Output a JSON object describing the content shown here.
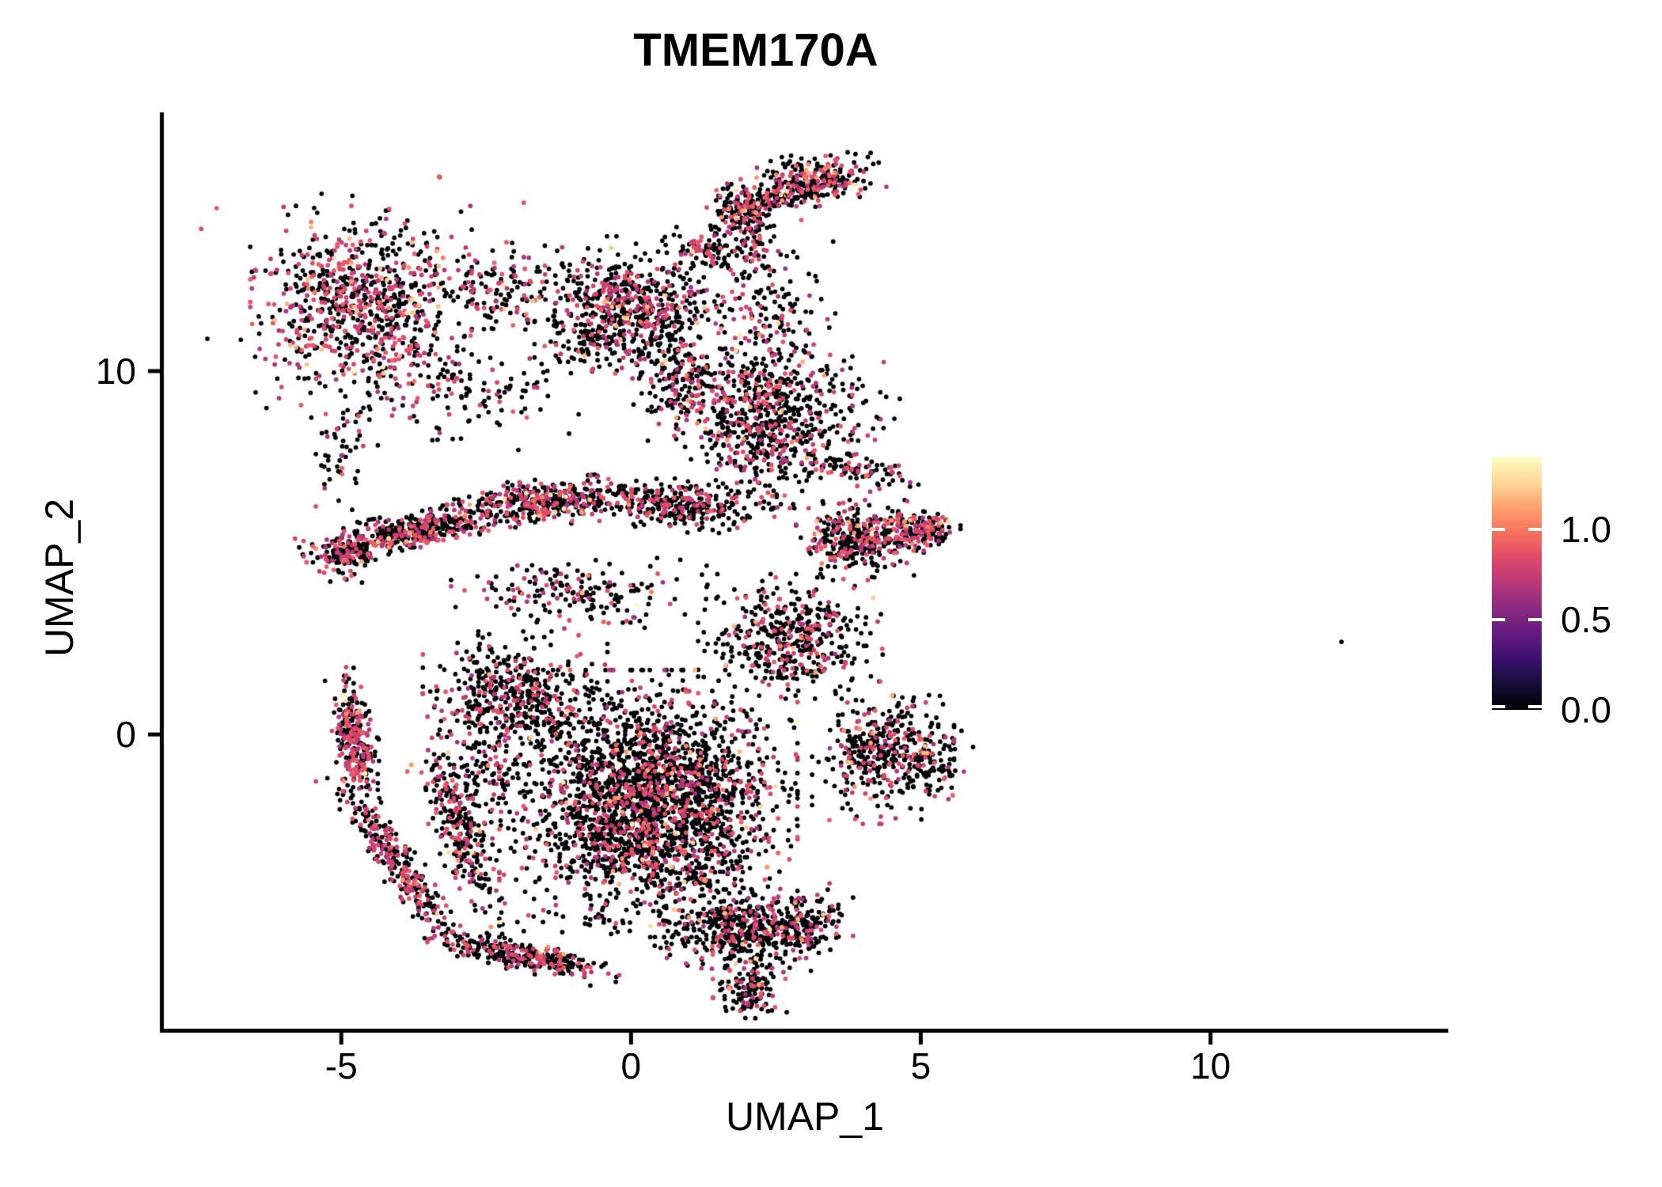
{
  "chart": {
    "title": "TMEM170A",
    "x_axis": {
      "label": "UMAP_1",
      "range": [
        -8.09,
        14.09
      ],
      "ticks": [
        {
          "value": -5,
          "label": "-5"
        },
        {
          "value": 0,
          "label": "0"
        },
        {
          "value": 5,
          "label": "5"
        },
        {
          "value": 10,
          "label": "10"
        }
      ]
    },
    "y_axis": {
      "label": "UMAP_2",
      "range": [
        -8.12,
        17.12
      ],
      "ticks": [
        {
          "value": 0,
          "label": "0"
        },
        {
          "value": 10,
          "label": "10"
        }
      ]
    },
    "colorbar": {
      "domain": [
        0,
        1.4
      ],
      "ticks": [
        {
          "value": 1.0,
          "label": "1.0"
        },
        {
          "value": 0.5,
          "label": "0.5"
        },
        {
          "value": 0.0,
          "label": "0.0"
        }
      ]
    }
  },
  "chart_data": {
    "type": "scatter",
    "title": "TMEM170A",
    "xlabel": "UMAP_1",
    "ylabel": "UMAP_2",
    "x_range": [
      -8.09,
      14.09
    ],
    "y_range": [
      -8.12,
      17.12
    ],
    "x_ticks": [
      -5,
      0,
      5,
      10
    ],
    "y_ticks": [
      0,
      10
    ],
    "grid": false,
    "legend_position": "right-colorbar",
    "point_radius_px": 2.9,
    "seed": 1337,
    "approx_total_points": 11390,
    "zero_expression_color": "#000004",
    "colormap": {
      "name": "magma",
      "domain": [
        0,
        1.4
      ],
      "stops": [
        [
          0.0,
          "#000004"
        ],
        [
          0.1,
          "#140e36"
        ],
        [
          0.2,
          "#3b0f70"
        ],
        [
          0.3,
          "#641a80"
        ],
        [
          0.4,
          "#8c2981"
        ],
        [
          0.5,
          "#b73779"
        ],
        [
          0.6,
          "#de4968"
        ],
        [
          0.7,
          "#f7705c"
        ],
        [
          0.8,
          "#fe9f6d"
        ],
        [
          0.9,
          "#fed799"
        ],
        [
          1.0,
          "#fcfdbf"
        ]
      ]
    },
    "clusters": [
      {
        "name": "topleft-blob",
        "cx": -4.66,
        "cy": 11.9,
        "sx": 0.78,
        "sy": 1.08,
        "rot": 0,
        "n": 680,
        "colored": 0.45,
        "orange": 0.1
      },
      {
        "name": "topleft-halo",
        "cx": -4.6,
        "cy": 11.8,
        "sx": 1.15,
        "sy": 1.45,
        "rot": 0,
        "n": 150,
        "colored": 0.3,
        "orange": 0.05
      },
      {
        "name": "bridge",
        "cx": -2.1,
        "cy": 12.3,
        "sx": 0.55,
        "sy": 0.5,
        "rot": -8,
        "n": 150,
        "colored": 0.3,
        "orange": 0.05
      },
      {
        "name": "midtop-cluster",
        "cx": 0.0,
        "cy": 11.8,
        "sx": 0.68,
        "sy": 0.78,
        "rot": 0,
        "n": 520,
        "colored": 0.33,
        "orange": 0.06
      },
      {
        "name": "midtop-lower",
        "cx": -0.55,
        "cy": 10.9,
        "sx": 0.5,
        "sy": 0.45,
        "rot": 0,
        "n": 120,
        "colored": 0.3,
        "orange": 0.05
      },
      {
        "name": "midtop-e-connector",
        "cx": 0.9,
        "cy": 9.8,
        "sx": 0.35,
        "sy": 0.7,
        "rot": 0,
        "n": 190,
        "colored": 0.3,
        "orange": 0.05
      },
      {
        "name": "arm-blob",
        "cx": 3.25,
        "cy": 15.3,
        "sx": 0.45,
        "sy": 0.3,
        "rot": 15,
        "n": 210,
        "colored": 0.42,
        "orange": 0.12
      },
      {
        "name": "arm-band",
        "cx": 2.45,
        "cy": 14.75,
        "sx": 0.55,
        "sy": 0.17,
        "rot": 28,
        "n": 170,
        "colored": 0.3,
        "orange": 0.06
      },
      {
        "name": "arm-hook",
        "cx": 1.9,
        "cy": 14.55,
        "sx": 0.23,
        "sy": 0.38,
        "rot": 0,
        "n": 110,
        "colored": 0.35,
        "orange": 0.08
      },
      {
        "name": "arm-chain",
        "cx": 2.05,
        "cy": 13.6,
        "sx": 0.17,
        "sy": 0.4,
        "rot": 0,
        "n": 60,
        "colored": 0.25,
        "orange": 0.05
      },
      {
        "name": "stream-top",
        "cx": 1.25,
        "cy": 13.3,
        "sx": 0.3,
        "sy": 0.3,
        "rot": 0,
        "n": 75,
        "colored": 0.4,
        "orange": 0.15
      },
      {
        "name": "arm-neck",
        "cx": 2.3,
        "cy": 12.0,
        "sx": 0.5,
        "sy": 0.9,
        "rot": 0,
        "n": 130,
        "colored": 0.28,
        "orange": 0.05
      },
      {
        "name": "e-blob",
        "cx": 2.3,
        "cy": 8.8,
        "sx": 0.62,
        "sy": 1.05,
        "rot": 0,
        "n": 680,
        "colored": 0.3,
        "orange": 0.12
      },
      {
        "name": "e-right",
        "cx": 3.6,
        "cy": 8.9,
        "sx": 0.5,
        "sy": 0.55,
        "rot": 0,
        "n": 50,
        "colored": 0.3,
        "orange": 0.05
      },
      {
        "name": "e-wedge-link",
        "cx": 3.9,
        "cy": 7.3,
        "sx": 0.5,
        "sy": 0.22,
        "rot": -15,
        "n": 90,
        "colored": 0.3,
        "orange": 0.05
      },
      {
        "name": "band-left",
        "cx": -3.85,
        "cy": 5.55,
        "sx": 0.78,
        "sy": 0.22,
        "rot": 17,
        "n": 430,
        "colored": 0.35,
        "orange": 0.05
      },
      {
        "name": "band-left-tip",
        "cx": -4.95,
        "cy": 4.85,
        "sx": 0.22,
        "sy": 0.3,
        "rot": 0,
        "n": 90,
        "colored": 0.4,
        "orange": 0.05
      },
      {
        "name": "band-mid",
        "cx": -1.4,
        "cy": 6.4,
        "sx": 0.68,
        "sy": 0.26,
        "rot": 8,
        "n": 390,
        "colored": 0.33,
        "orange": 0.05
      },
      {
        "name": "band-right",
        "cx": 0.9,
        "cy": 6.3,
        "sx": 0.65,
        "sy": 0.3,
        "rot": -4,
        "n": 310,
        "colored": 0.3,
        "orange": 0.06
      },
      {
        "name": "wedge",
        "cx": 3.95,
        "cy": 5.35,
        "sx": 0.45,
        "sy": 0.45,
        "rot": 0,
        "n": 360,
        "colored": 0.35,
        "orange": 0.07
      },
      {
        "name": "wedge-tip",
        "cx": 5.0,
        "cy": 5.6,
        "sx": 0.28,
        "sy": 0.22,
        "rot": 0,
        "n": 150,
        "colored": 0.45,
        "orange": 0.1
      },
      {
        "name": "gap-sparse",
        "cx": -0.9,
        "cy": 3.9,
        "sx": 0.9,
        "sy": 0.42,
        "rot": 0,
        "n": 180,
        "colored": 0.3,
        "orange": 0.05
      },
      {
        "name": "a-band-stream",
        "cx": -4.9,
        "cy": 7.9,
        "sx": 0.22,
        "sy": 0.7,
        "rot": 0,
        "n": 55,
        "colored": 0.3,
        "orange": 0.05
      },
      {
        "name": "below-bridge",
        "cx": -2.8,
        "cy": 9.3,
        "sx": 0.95,
        "sy": 0.6,
        "rot": 0,
        "n": 120,
        "colored": 0.25,
        "orange": 0.05
      },
      {
        "name": "core",
        "cx": 0.3,
        "cy": -1.9,
        "sx": 1.05,
        "sy": 1.5,
        "rot": 0,
        "n": 2550,
        "colored": 0.24,
        "orange": 0.08
      },
      {
        "name": "core-upperleft",
        "cx": -2.0,
        "cy": 1.0,
        "sx": 0.65,
        "sy": 0.75,
        "rot": 0,
        "n": 480,
        "colored": 0.27,
        "orange": 0.06
      },
      {
        "name": "core-upperright",
        "cx": 2.75,
        "cy": 2.7,
        "sx": 0.65,
        "sy": 0.7,
        "rot": 0,
        "n": 440,
        "colored": 0.27,
        "orange": 0.06
      },
      {
        "name": "right-lobe",
        "cx": 4.35,
        "cy": -0.5,
        "sx": 0.5,
        "sy": 0.8,
        "rot": 0,
        "n": 430,
        "colored": 0.26,
        "orange": 0.06
      },
      {
        "name": "right-lobe-tip",
        "cx": 5.3,
        "cy": -0.8,
        "sx": 0.25,
        "sy": 0.4,
        "rot": 0,
        "n": 60,
        "colored": 0.25,
        "orange": 0.05
      },
      {
        "name": "tail",
        "cx": 1.9,
        "cy": -5.4,
        "sx": 0.6,
        "sy": 0.5,
        "rot": -15,
        "n": 430,
        "colored": 0.22,
        "orange": 0.06
      },
      {
        "name": "tail-tip",
        "cx": 2.05,
        "cy": -7.0,
        "sx": 0.26,
        "sy": 0.33,
        "rot": 0,
        "n": 130,
        "colored": 0.2,
        "orange": 0.05
      },
      {
        "name": "tail-right-edge",
        "cx": 2.9,
        "cy": -5.2,
        "sx": 0.38,
        "sy": 0.45,
        "rot": 0,
        "n": 160,
        "colored": 0.25,
        "orange": 0.05
      },
      {
        "name": "arc-left-top",
        "cx": -4.75,
        "cy": -0.1,
        "sx": 0.16,
        "sy": 0.8,
        "rot": 5,
        "n": 270,
        "colored": 0.45,
        "orange": 0.06
      },
      {
        "name": "arc-left-diag",
        "cx": -4.0,
        "cy": -3.6,
        "sx": 1.1,
        "sy": 0.17,
        "rot": -66,
        "n": 300,
        "colored": 0.4,
        "orange": 0.05
      },
      {
        "name": "arc-inner",
        "cx": -2.95,
        "cy": -2.65,
        "sx": 1.1,
        "sy": 0.2,
        "rot": -76,
        "n": 260,
        "colored": 0.35,
        "orange": 0.05
      },
      {
        "name": "arc-fill",
        "cx": -2.6,
        "cy": -1.1,
        "sx": 0.42,
        "sy": 0.8,
        "rot": 0,
        "n": 120,
        "colored": 0.3,
        "orange": 0.05
      },
      {
        "name": "bottom-edge",
        "cx": -1.83,
        "cy": -6.08,
        "sx": 0.7,
        "sy": 0.18,
        "rot": -18,
        "n": 290,
        "colored": 0.3,
        "orange": 0.05
      }
    ],
    "outlier_points": [
      {
        "x": 12.26,
        "y": 2.55,
        "value": 0
      }
    ]
  }
}
